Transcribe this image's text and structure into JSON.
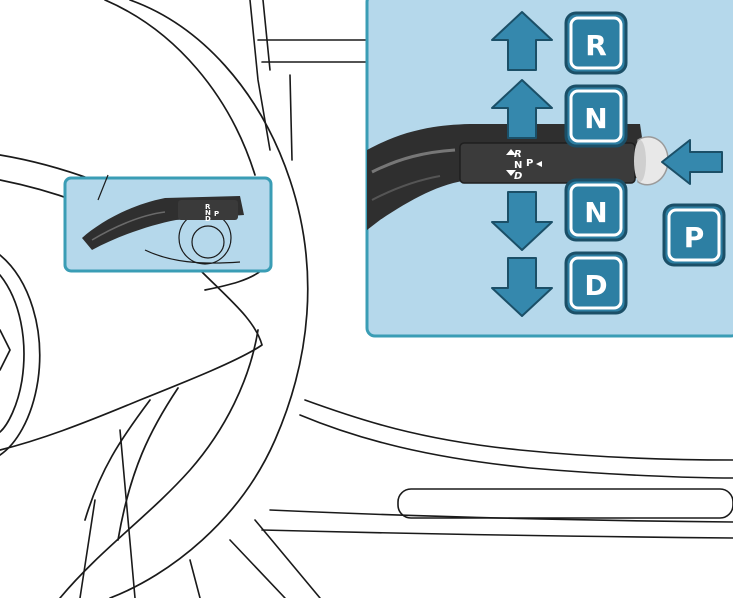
{
  "colors": {
    "panel_fill": "#b5d8eb",
    "panel_border": "#3a9db5",
    "badge_fill": "#2d7fa3",
    "badge_border": "#1b4f67",
    "arrow_fill": "#3588ad",
    "arrow_stroke": "#1b4f67",
    "lever_dark": "#2f2f2f",
    "line_art": "#1a1a1a"
  },
  "stalk_label": {
    "r": "R",
    "n": "N",
    "d": "D",
    "p": "P"
  },
  "positions": [
    {
      "id": "r-up-full",
      "label": "R",
      "direction": "up",
      "icon": "arrow-up-icon"
    },
    {
      "id": "n-up-partial",
      "label": "N",
      "direction": "up",
      "icon": "arrow-up-icon"
    },
    {
      "id": "n-down-partial",
      "label": "N",
      "direction": "down",
      "icon": "arrow-down-icon"
    },
    {
      "id": "d-down-full",
      "label": "D",
      "direction": "down",
      "icon": "arrow-down-icon"
    },
    {
      "id": "p-push",
      "label": "P",
      "direction": "left",
      "icon": "arrow-left-icon"
    }
  ]
}
